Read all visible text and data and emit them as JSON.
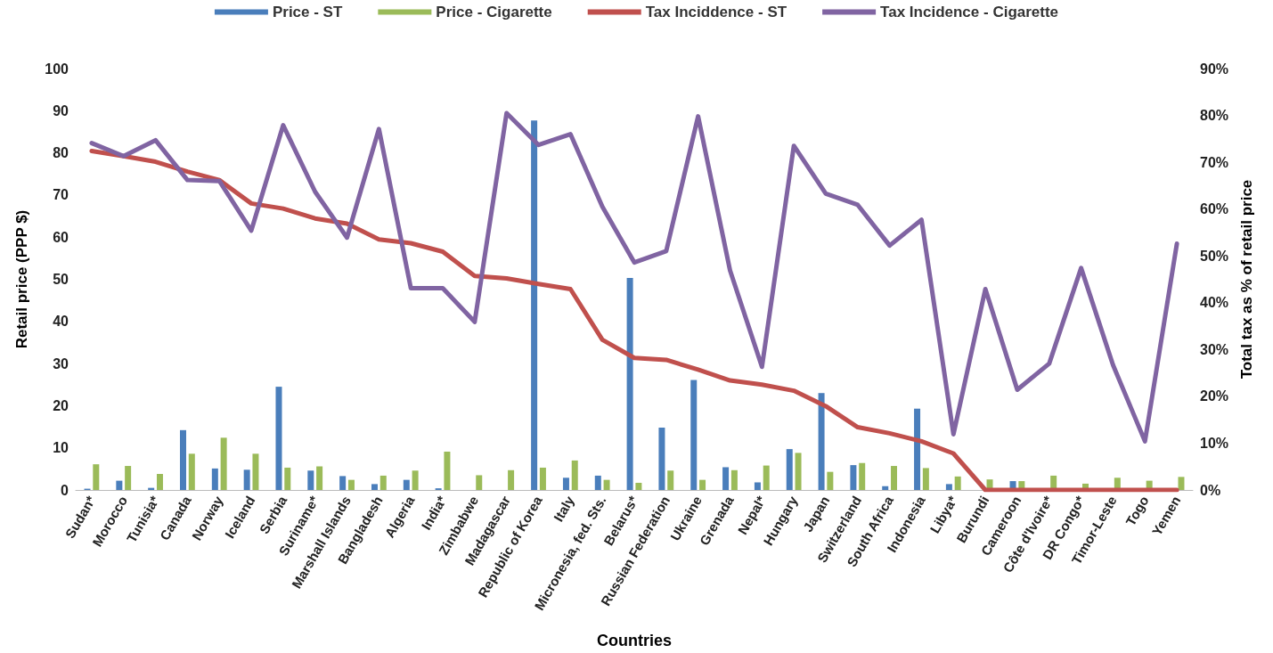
{
  "chart_data": {
    "type": "bar",
    "xlabel": "Countries",
    "ylabel": "Retail price (PPP $)",
    "y2label": "Total tax as % of retail price",
    "categories": [
      "Sudan*",
      "Morocco",
      "Tunisia*",
      "Canada",
      "Norway",
      "Iceland",
      "Serbia",
      "Suriname*",
      "Marshall Islands",
      "Bangladesh",
      "Algeria",
      "India*",
      "Zimbabwe",
      "Madagascar",
      "Republic of Korea",
      "Italy",
      "Micronesia, fed. Sts.",
      "Belarus*",
      "Russian Federation",
      "Ukraine",
      "Grenada",
      "Nepal*",
      "Hungary",
      "Japan",
      "Switzerland",
      "South Africa",
      "Indonesia",
      "Libya*",
      "Burundi",
      "Cameroon",
      "Côte d'Ivoire*",
      "DR Congo*",
      "Timor-Leste",
      "Togo",
      "Yemen"
    ],
    "series": [
      {
        "name": "Price - ST",
        "color": "#4a7ebb",
        "values": [
          0.3,
          2.2,
          0.5,
          14.2,
          5.1,
          4.8,
          24.5,
          4.6,
          3.3,
          1.4,
          2.4,
          0.4,
          null,
          null,
          87.7,
          2.9,
          3.4,
          50.3,
          14.8,
          26.1,
          5.4,
          1.8,
          9.7,
          23,
          5.9,
          0.9,
          19.3,
          1.4,
          null,
          2.1,
          null,
          null,
          null,
          null,
          null
        ]
      },
      {
        "name": "Price - Cigarette",
        "color": "#9bbb59",
        "values": [
          6.1,
          5.7,
          3.8,
          8.6,
          12.4,
          8.6,
          5.3,
          5.6,
          2.4,
          3.4,
          4.6,
          9.1,
          3.5,
          4.7,
          5.3,
          7.0,
          2.4,
          1.7,
          4.6,
          2.4,
          4.7,
          5.8,
          8.8,
          4.3,
          6.4,
          5.7,
          5.2,
          3.2,
          2.5,
          2.1,
          3.4,
          1.5,
          2.9,
          2.2,
          3.1
        ]
      },
      {
        "name": "Tax Inciddence - ST",
        "type": "line",
        "axis": "y2",
        "color": "#c0504d",
        "values": [
          72.4,
          71.3,
          70.1,
          68,
          66.2,
          61.2,
          60.1,
          58,
          56.9,
          53.5,
          52.7,
          50.9,
          45.7,
          45.2,
          44,
          42.9,
          32.1,
          28.2,
          27.8,
          25.7,
          23.4,
          22.5,
          21.2,
          17.9,
          13.4,
          12.1,
          10.4,
          7.8,
          0,
          0,
          0,
          0,
          0,
          0,
          0
        ]
      },
      {
        "name": "Tax Incidence - Cigarette",
        "type": "line",
        "axis": "y2",
        "color": "#8064a2",
        "values": [
          74.1,
          71.3,
          74.7,
          66.2,
          66,
          55.4,
          77.9,
          63.7,
          53.9,
          77.1,
          43.1,
          43.1,
          35.9,
          80.5,
          73.7,
          76,
          60.5,
          48.6,
          51,
          79.8,
          46.9,
          26.3,
          73.5,
          63.3,
          60.9,
          52.2,
          57.7,
          11.9,
          42.9,
          21.4,
          27,
          47.4,
          26.7,
          10.4,
          52.6
        ]
      }
    ],
    "ylim": [
      0,
      100
    ],
    "yticks": [
      0,
      10,
      20,
      30,
      40,
      50,
      60,
      70,
      80,
      90,
      100
    ],
    "y2lim": [
      0,
      90
    ],
    "y2ticks": [
      {
        "value": 0,
        "label": "0%"
      },
      {
        "value": 10,
        "label": "10%"
      },
      {
        "value": 20,
        "label": "20%"
      },
      {
        "value": 30,
        "label": "30%"
      },
      {
        "value": 40,
        "label": "40%"
      },
      {
        "value": 50,
        "label": "50%"
      },
      {
        "value": 60,
        "label": "60%"
      },
      {
        "value": 70,
        "label": "70%"
      },
      {
        "value": 80,
        "label": "80%"
      },
      {
        "value": 90,
        "label": "90%"
      }
    ],
    "grid": false,
    "legend": "top",
    "marker": "none",
    "line_style": "solid"
  }
}
